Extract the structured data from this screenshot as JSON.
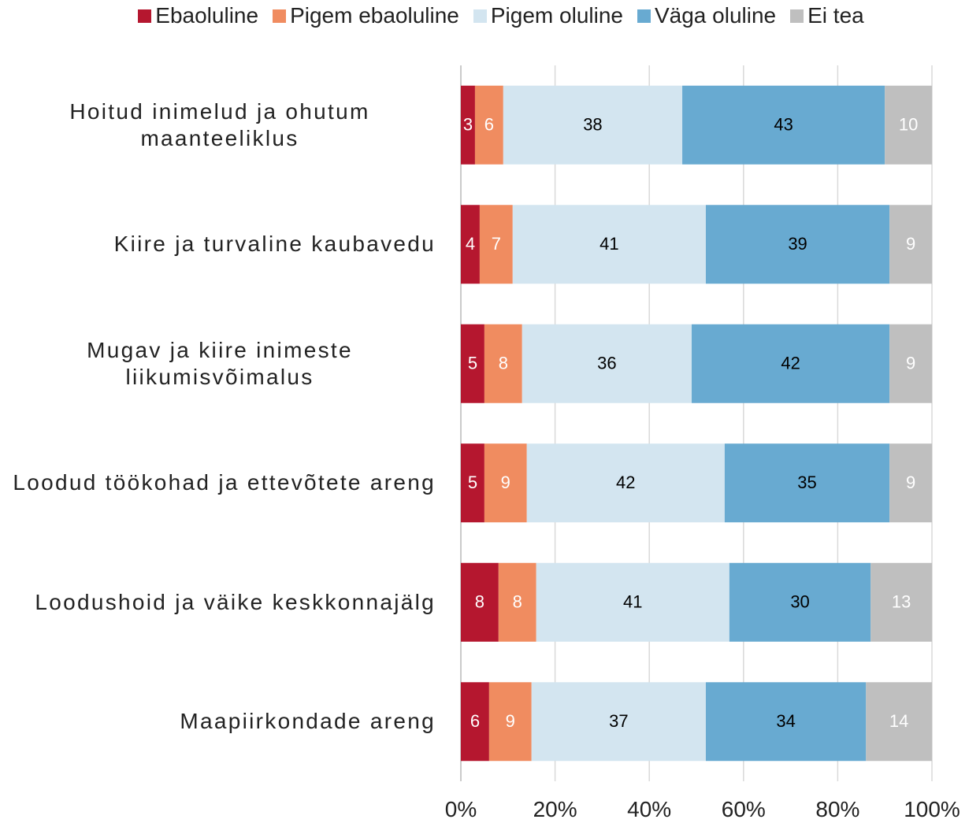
{
  "chart_data": {
    "type": "stacked_barh",
    "categories": [
      "Hoitud inimelud ja ohutum maanteeliklus",
      "Kiire ja turvaline kaubavedu",
      "Mugav ja kiire inimeste liikumisvõimalus",
      "Loodud töökohad ja ettevõtete areng",
      "Loodushoid ja väike keskkonnajälg",
      "Maapiirkondade areng"
    ],
    "series": [
      {
        "name": "Ebaoluline",
        "color": "#b5172f",
        "label_color": "#ffffff",
        "values": [
          3,
          4,
          5,
          5,
          8,
          6
        ]
      },
      {
        "name": "Pigem ebaoluline",
        "color": "#f08c60",
        "label_color": "#ffffff",
        "values": [
          6,
          7,
          8,
          9,
          8,
          9
        ]
      },
      {
        "name": "Pigem oluline",
        "color": "#d3e5f0",
        "label_color": "#000000",
        "values": [
          38,
          41,
          36,
          42,
          41,
          37
        ]
      },
      {
        "name": "Väga oluline",
        "color": "#68aad1",
        "label_color": "#000000",
        "values": [
          43,
          39,
          42,
          35,
          30,
          34
        ]
      },
      {
        "name": "Ei tea",
        "color": "#bfbfbf",
        "label_color": "#ffffff",
        "values": [
          10,
          9,
          9,
          9,
          13,
          14
        ]
      }
    ],
    "xlim": [
      0,
      100
    ],
    "xticks": [
      {
        "value": 0,
        "label": "0%"
      },
      {
        "value": 20,
        "label": "20%"
      },
      {
        "value": 40,
        "label": "40%"
      },
      {
        "value": 60,
        "label": "60%"
      },
      {
        "value": 80,
        "label": "80%"
      },
      {
        "value": 100,
        "label": "100%"
      }
    ],
    "grid": true,
    "legend": "top"
  }
}
